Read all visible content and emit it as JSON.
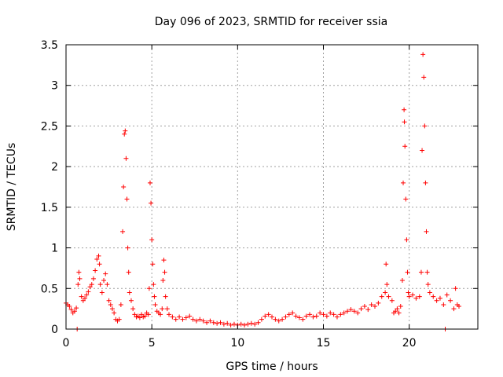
{
  "chart_data": {
    "type": "scatter",
    "title": "Day 096 of 2023, SRMTID for receiver ssia",
    "xlabel": "GPS time / hours",
    "ylabel": "SRMTID / TECUs",
    "xlim": [
      0,
      24
    ],
    "ylim": [
      0,
      3.5
    ],
    "xticks": [
      0,
      5,
      10,
      15,
      20
    ],
    "yticks": [
      0,
      0.5,
      1,
      1.5,
      2,
      2.5,
      3,
      3.5
    ],
    "xtick_labels": [
      "0",
      "5",
      "10",
      "15",
      "20"
    ],
    "ytick_labels": [
      "0",
      "0.5",
      "1",
      "1.5",
      "2",
      "2.5",
      "3",
      "3.5"
    ],
    "grid": true,
    "marker": "+",
    "color": "#ff0000",
    "series": [
      {
        "name": "SRMTID",
        "points": [
          [
            0.0,
            0.32
          ],
          [
            0.1,
            0.3
          ],
          [
            0.2,
            0.28
          ],
          [
            0.3,
            0.24
          ],
          [
            0.4,
            0.2
          ],
          [
            0.5,
            0.22
          ],
          [
            0.6,
            0.26
          ],
          [
            0.65,
            0.0
          ],
          [
            0.7,
            0.55
          ],
          [
            0.75,
            0.7
          ],
          [
            0.8,
            0.62
          ],
          [
            0.9,
            0.4
          ],
          [
            1.0,
            0.35
          ],
          [
            1.1,
            0.38
          ],
          [
            1.2,
            0.42
          ],
          [
            1.3,
            0.46
          ],
          [
            1.4,
            0.52
          ],
          [
            1.5,
            0.55
          ],
          [
            1.6,
            0.62
          ],
          [
            1.7,
            0.72
          ],
          [
            1.8,
            0.86
          ],
          [
            1.9,
            0.9
          ],
          [
            1.95,
            0.8
          ],
          [
            2.0,
            0.55
          ],
          [
            2.1,
            0.45
          ],
          [
            2.2,
            0.6
          ],
          [
            2.3,
            0.68
          ],
          [
            2.4,
            0.55
          ],
          [
            2.5,
            0.35
          ],
          [
            2.6,
            0.3
          ],
          [
            2.7,
            0.25
          ],
          [
            2.8,
            0.2
          ],
          [
            2.9,
            0.12
          ],
          [
            3.0,
            0.1
          ],
          [
            3.1,
            0.12
          ],
          [
            3.2,
            0.3
          ],
          [
            3.3,
            1.2
          ],
          [
            3.35,
            1.75
          ],
          [
            3.4,
            2.4
          ],
          [
            3.45,
            2.44
          ],
          [
            3.5,
            2.1
          ],
          [
            3.55,
            1.6
          ],
          [
            3.6,
            1.0
          ],
          [
            3.65,
            0.7
          ],
          [
            3.7,
            0.45
          ],
          [
            3.8,
            0.35
          ],
          [
            3.9,
            0.25
          ],
          [
            4.0,
            0.18
          ],
          [
            4.1,
            0.15
          ],
          [
            4.2,
            0.16
          ],
          [
            4.3,
            0.14
          ],
          [
            4.4,
            0.18
          ],
          [
            4.5,
            0.15
          ],
          [
            4.6,
            0.16
          ],
          [
            4.7,
            0.2
          ],
          [
            4.8,
            0.18
          ],
          [
            4.85,
            0.5
          ],
          [
            4.9,
            1.8
          ],
          [
            4.95,
            1.55
          ],
          [
            5.0,
            1.1
          ],
          [
            5.05,
            0.8
          ],
          [
            5.1,
            0.55
          ],
          [
            5.15,
            0.4
          ],
          [
            5.2,
            0.3
          ],
          [
            5.3,
            0.22
          ],
          [
            5.4,
            0.2
          ],
          [
            5.5,
            0.18
          ],
          [
            5.6,
            0.25
          ],
          [
            5.65,
            0.6
          ],
          [
            5.7,
            0.85
          ],
          [
            5.75,
            0.7
          ],
          [
            5.8,
            0.4
          ],
          [
            5.9,
            0.25
          ],
          [
            6.0,
            0.18
          ],
          [
            6.2,
            0.15
          ],
          [
            6.4,
            0.12
          ],
          [
            6.6,
            0.15
          ],
          [
            6.8,
            0.12
          ],
          [
            7.0,
            0.14
          ],
          [
            7.2,
            0.16
          ],
          [
            7.4,
            0.12
          ],
          [
            7.6,
            0.1
          ],
          [
            7.8,
            0.12
          ],
          [
            8.0,
            0.1
          ],
          [
            8.2,
            0.08
          ],
          [
            8.4,
            0.1
          ],
          [
            8.6,
            0.08
          ],
          [
            8.8,
            0.07
          ],
          [
            9.0,
            0.08
          ],
          [
            9.2,
            0.06
          ],
          [
            9.4,
            0.07
          ],
          [
            9.6,
            0.05
          ],
          [
            9.8,
            0.06
          ],
          [
            10.0,
            0.05
          ],
          [
            10.2,
            0.06
          ],
          [
            10.4,
            0.05
          ],
          [
            10.6,
            0.06
          ],
          [
            10.8,
            0.07
          ],
          [
            11.0,
            0.06
          ],
          [
            11.2,
            0.08
          ],
          [
            11.4,
            0.12
          ],
          [
            11.6,
            0.16
          ],
          [
            11.8,
            0.18
          ],
          [
            12.0,
            0.15
          ],
          [
            12.2,
            0.12
          ],
          [
            12.4,
            0.1
          ],
          [
            12.6,
            0.12
          ],
          [
            12.8,
            0.15
          ],
          [
            13.0,
            0.18
          ],
          [
            13.2,
            0.2
          ],
          [
            13.4,
            0.16
          ],
          [
            13.6,
            0.14
          ],
          [
            13.8,
            0.12
          ],
          [
            14.0,
            0.16
          ],
          [
            14.2,
            0.18
          ],
          [
            14.4,
            0.15
          ],
          [
            14.6,
            0.16
          ],
          [
            14.8,
            0.2
          ],
          [
            15.0,
            0.18
          ],
          [
            15.2,
            0.16
          ],
          [
            15.4,
            0.2
          ],
          [
            15.6,
            0.18
          ],
          [
            15.8,
            0.15
          ],
          [
            16.0,
            0.18
          ],
          [
            16.2,
            0.2
          ],
          [
            16.4,
            0.22
          ],
          [
            16.6,
            0.24
          ],
          [
            16.8,
            0.22
          ],
          [
            17.0,
            0.2
          ],
          [
            17.2,
            0.25
          ],
          [
            17.4,
            0.28
          ],
          [
            17.6,
            0.24
          ],
          [
            17.8,
            0.3
          ],
          [
            18.0,
            0.28
          ],
          [
            18.2,
            0.32
          ],
          [
            18.4,
            0.4
          ],
          [
            18.6,
            0.45
          ],
          [
            18.65,
            0.8
          ],
          [
            18.7,
            0.55
          ],
          [
            18.8,
            0.4
          ],
          [
            19.0,
            0.35
          ],
          [
            19.1,
            0.2
          ],
          [
            19.2,
            0.22
          ],
          [
            19.3,
            0.25
          ],
          [
            19.4,
            0.2
          ],
          [
            19.5,
            0.28
          ],
          [
            19.6,
            0.6
          ],
          [
            19.65,
            1.8
          ],
          [
            19.7,
            2.7
          ],
          [
            19.72,
            2.55
          ],
          [
            19.75,
            2.25
          ],
          [
            19.8,
            1.6
          ],
          [
            19.85,
            1.1
          ],
          [
            19.9,
            0.7
          ],
          [
            19.95,
            0.45
          ],
          [
            20.0,
            0.4
          ],
          [
            20.2,
            0.42
          ],
          [
            20.4,
            0.38
          ],
          [
            20.6,
            0.4
          ],
          [
            20.7,
            0.7
          ],
          [
            20.75,
            2.2
          ],
          [
            20.8,
            3.38
          ],
          [
            20.85,
            3.1
          ],
          [
            20.9,
            2.5
          ],
          [
            20.95,
            1.8
          ],
          [
            21.0,
            1.2
          ],
          [
            21.05,
            0.7
          ],
          [
            21.1,
            0.55
          ],
          [
            21.2,
            0.45
          ],
          [
            21.4,
            0.4
          ],
          [
            21.6,
            0.35
          ],
          [
            21.8,
            0.38
          ],
          [
            22.0,
            0.3
          ],
          [
            22.1,
            0.0
          ],
          [
            22.2,
            0.42
          ],
          [
            22.4,
            0.35
          ],
          [
            22.6,
            0.25
          ],
          [
            22.7,
            0.5
          ],
          [
            22.8,
            0.3
          ],
          [
            22.9,
            0.28
          ]
        ]
      }
    ]
  }
}
